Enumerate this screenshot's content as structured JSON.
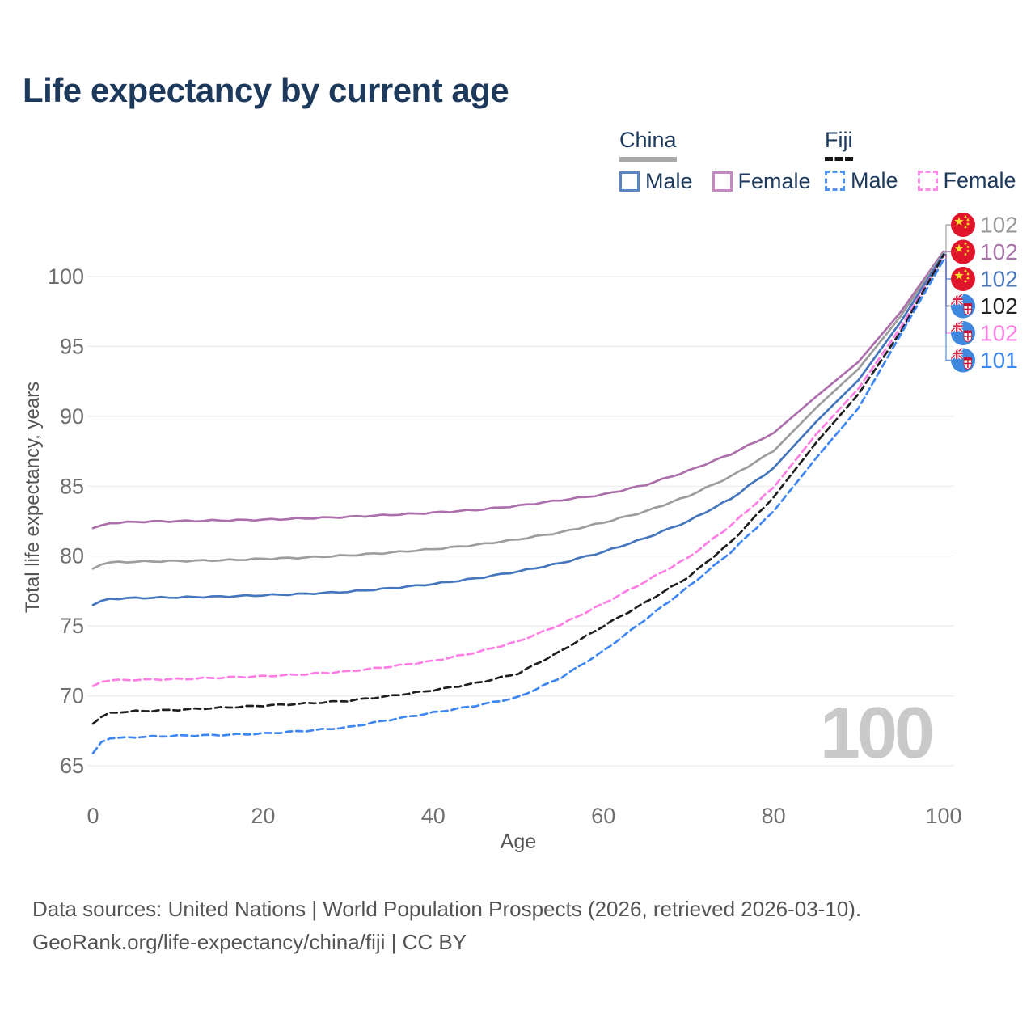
{
  "title": "Life expectancy by current age",
  "legend": {
    "groups": [
      {
        "name": "China",
        "underline_style": "solid",
        "underline_color": "#a9a9a9",
        "items": [
          {
            "label": "Male",
            "color": "#5b84c4",
            "dashed": false
          },
          {
            "label": "Female",
            "color": "#c489c0",
            "dashed": false
          }
        ]
      },
      {
        "name": "Fiji",
        "underline_style": "dashed",
        "underline_color": "#151515",
        "items": [
          {
            "label": "Male",
            "color": "#4f91f5",
            "dashed": true
          },
          {
            "label": "Female",
            "color": "#ff8ae8",
            "dashed": true
          }
        ]
      }
    ]
  },
  "watermark": "100",
  "footer": {
    "line1": "Data sources: United Nations | World Population Prospects (2026, retrieved 2026-03-10).",
    "line2": "GeoRank.org/life-expectancy/china/fiji | CC BY"
  },
  "chart_data": {
    "type": "line",
    "title": "Life expectancy by current age",
    "xlabel": "Age",
    "ylabel": "Total life expectancy, years",
    "xlim": [
      0,
      100
    ],
    "ylim": [
      63.5,
      103
    ],
    "xticks": [
      0,
      20,
      40,
      60,
      80,
      100
    ],
    "yticks": [
      65,
      70,
      75,
      80,
      85,
      90,
      95,
      100
    ],
    "grid": "horizontal-only",
    "legend_position": "top-right",
    "x": [
      0,
      1,
      2,
      5,
      10,
      15,
      20,
      25,
      30,
      35,
      40,
      45,
      50,
      55,
      60,
      65,
      70,
      75,
      80,
      85,
      90,
      95,
      100
    ],
    "series": [
      {
        "name": "China Female",
        "country": "China",
        "sex": "Female",
        "color": "#ac6fac",
        "dashed": false,
        "values": [
          82.0,
          82.2,
          82.35,
          82.45,
          82.5,
          82.55,
          82.6,
          82.7,
          82.8,
          82.95,
          83.1,
          83.3,
          83.6,
          84.0,
          84.4,
          85.1,
          86.1,
          87.3,
          88.8,
          91.4,
          93.9,
          97.5,
          101.8
        ]
      },
      {
        "name": "China Both sexes",
        "country": "China",
        "sex": "Both",
        "color": "#9d9d9d",
        "dashed": false,
        "values": [
          79.1,
          79.4,
          79.55,
          79.6,
          79.65,
          79.7,
          79.8,
          79.9,
          80.05,
          80.25,
          80.5,
          80.8,
          81.2,
          81.7,
          82.4,
          83.2,
          84.3,
          85.7,
          87.5,
          90.6,
          93.4,
          97.2,
          101.7
        ]
      },
      {
        "name": "China Male",
        "country": "China",
        "sex": "Male",
        "color": "#4576bd",
        "dashed": false,
        "values": [
          76.5,
          76.8,
          76.95,
          77.0,
          77.05,
          77.1,
          77.2,
          77.3,
          77.45,
          77.7,
          78.0,
          78.4,
          78.9,
          79.5,
          80.3,
          81.3,
          82.5,
          84.1,
          86.3,
          89.6,
          92.6,
          96.8,
          101.6
        ]
      },
      {
        "name": "Fiji Female",
        "country": "Fiji",
        "sex": "Female",
        "color": "#ff7ee4",
        "dashed": true,
        "values": [
          70.7,
          71.0,
          71.1,
          71.15,
          71.2,
          71.3,
          71.4,
          71.55,
          71.75,
          72.1,
          72.5,
          73.1,
          73.9,
          75.1,
          76.6,
          78.2,
          79.9,
          82.2,
          84.9,
          88.7,
          92.0,
          96.4,
          101.5
        ]
      },
      {
        "name": "Fiji Both sexes",
        "country": "Fiji",
        "sex": "Both",
        "color": "#1f1f1f",
        "dashed": true,
        "values": [
          68.0,
          68.5,
          68.8,
          68.9,
          69.0,
          69.15,
          69.3,
          69.45,
          69.65,
          70.0,
          70.4,
          70.9,
          71.6,
          73.2,
          75.0,
          76.7,
          78.5,
          81.0,
          84.2,
          88.1,
          91.6,
          96.1,
          101.55
        ]
      },
      {
        "name": "Fiji Male",
        "country": "Fiji",
        "sex": "Male",
        "color": "#3e86f2",
        "dashed": true,
        "values": [
          65.9,
          66.7,
          66.95,
          67.05,
          67.15,
          67.2,
          67.3,
          67.5,
          67.75,
          68.3,
          68.8,
          69.3,
          69.9,
          71.3,
          73.2,
          75.5,
          77.8,
          80.3,
          83.2,
          87.0,
          90.6,
          95.9,
          101.2
        ]
      }
    ],
    "end_labels": [
      {
        "series": "China Both sexes",
        "flag": "china",
        "text": "102",
        "color": "#999999"
      },
      {
        "series": "China Female",
        "flag": "china",
        "text": "102",
        "color": "#a873a9"
      },
      {
        "series": "China Male",
        "flag": "china",
        "text": "102",
        "color": "#4576bd"
      },
      {
        "series": "Fiji Both sexes",
        "flag": "fiji",
        "text": "102",
        "color": "#1f1f1f"
      },
      {
        "series": "Fiji Female",
        "flag": "fiji",
        "text": "102",
        "color": "#ff7ee4"
      },
      {
        "series": "Fiji Male",
        "flag": "fiji",
        "text": "101",
        "color": "#3e86f2"
      }
    ],
    "flag_colors": {
      "china_red": "#e0152b",
      "china_star": "#ffde33",
      "fiji_blue": "#3f88e0",
      "fiji_red": "#d8294a",
      "fiji_shield_red": "#c8102e"
    },
    "axis_text_color": "#6f6f6f",
    "axis_title_color": "#555555",
    "gridline_color": "#ececec"
  }
}
